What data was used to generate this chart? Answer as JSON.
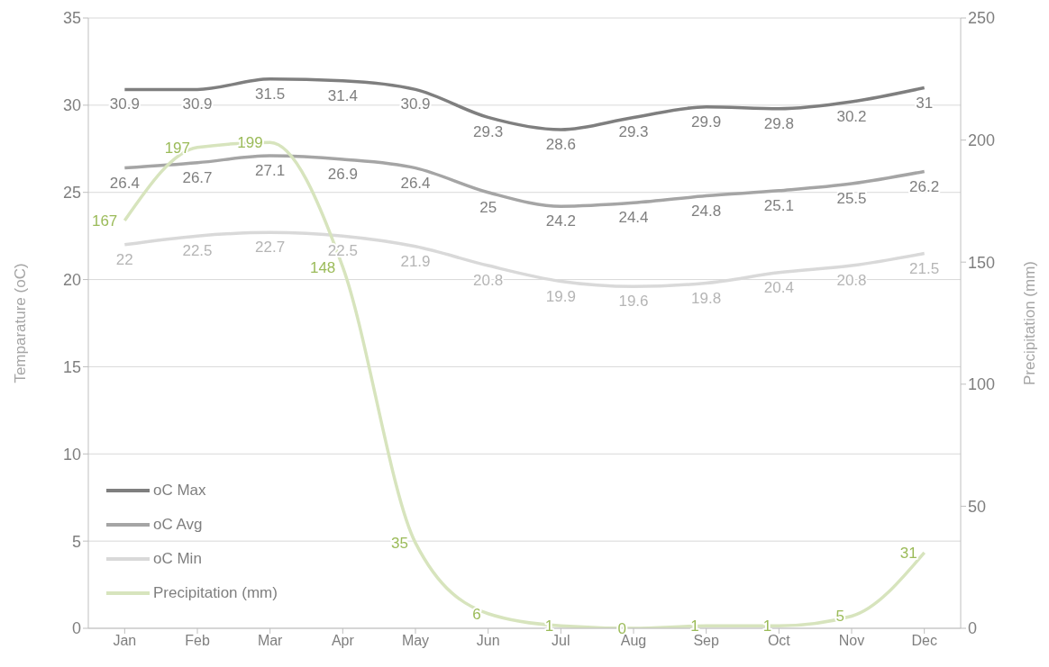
{
  "chart_data": {
    "type": "line",
    "ylabel": "Temparature  (oC)",
    "y2label": "Precipitation (mm)",
    "categories": [
      "Jan",
      "Feb",
      "Mar",
      "Apr",
      "May",
      "Jun",
      "Jul",
      "Aug",
      "Sep",
      "Oct",
      "Nov",
      "Dec"
    ],
    "series": [
      {
        "name": "oC Max",
        "color": "#7f7f7f",
        "values": [
          30.9,
          30.9,
          31.5,
          31.4,
          30.9,
          29.3,
          28.6,
          29.3,
          29.9,
          29.8,
          30.2,
          31
        ]
      },
      {
        "name": "oC Avg",
        "color": "#a5a5a5",
        "values": [
          26.4,
          26.7,
          27.1,
          26.9,
          26.4,
          25,
          24.2,
          24.4,
          24.8,
          25.1,
          25.5,
          26.2
        ]
      },
      {
        "name": "oC Min",
        "color": "#d9d9d9",
        "values": [
          22,
          22.5,
          22.7,
          22.5,
          21.9,
          20.8,
          19.9,
          19.6,
          19.8,
          20.4,
          20.8,
          21.5
        ]
      },
      {
        "name": "Precipitation (mm)",
        "color": "#d7e4bd",
        "axis": "y2",
        "values": [
          167,
          197,
          199,
          148,
          35,
          6,
          1,
          0,
          1,
          1,
          5,
          31
        ]
      }
    ],
    "ylim": [
      0,
      35
    ],
    "yticks": [
      0,
      5,
      10,
      15,
      20,
      25,
      30,
      35
    ],
    "y2lim": [
      0,
      250
    ],
    "y2ticks": [
      0,
      50,
      100,
      150,
      200,
      250
    ],
    "grid": "y",
    "legend": "bottom left",
    "data_labels": true,
    "marker": "none"
  }
}
